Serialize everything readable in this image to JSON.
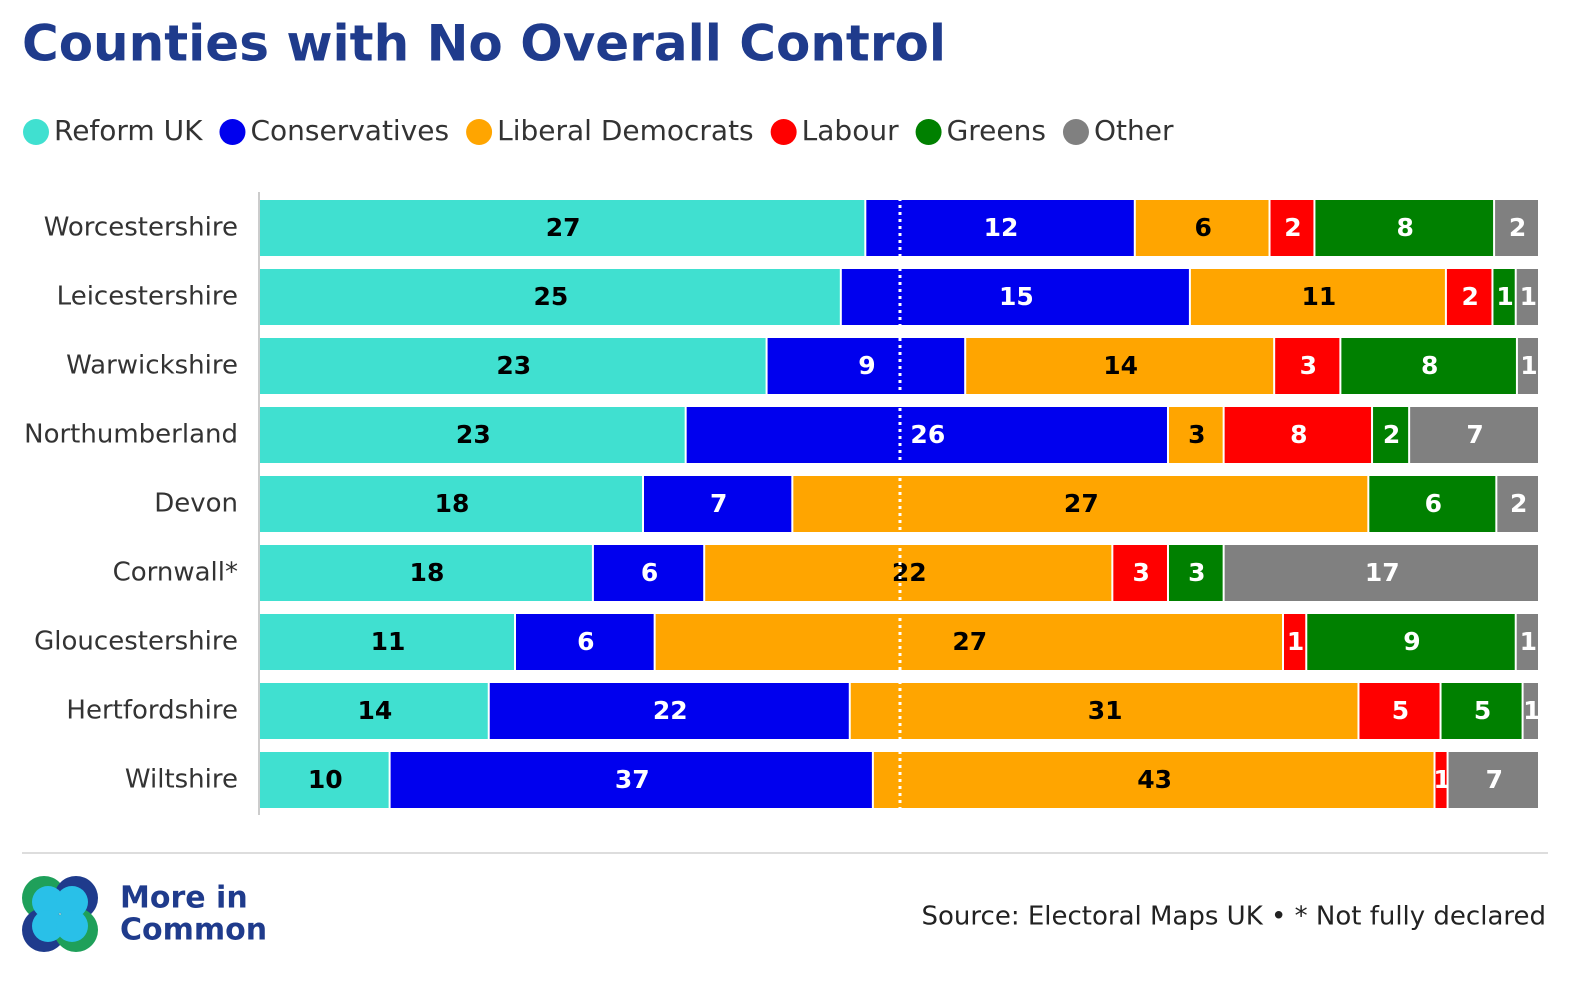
{
  "chart_data": {
    "type": "bar",
    "orientation": "horizontal",
    "stacked": "percent",
    "title": "Counties with No Overall Control",
    "categories": [
      "Worcestershire",
      "Leicestershire",
      "Warwickshire",
      "Northumberland",
      "Devon",
      "Cornwall*",
      "Gloucestershire",
      "Hertfordshire",
      "Wiltshire"
    ],
    "series": [
      {
        "name": "Reform UK",
        "color": "#40e0d0",
        "label_color": "#000000",
        "values": [
          27,
          25,
          23,
          23,
          18,
          18,
          11,
          14,
          10
        ]
      },
      {
        "name": "Conservatives",
        "color": "#0000ee",
        "label_color": "#ffffff",
        "values": [
          12,
          15,
          9,
          26,
          7,
          6,
          6,
          22,
          37
        ]
      },
      {
        "name": "Liberal Democrats",
        "color": "#ffa500",
        "label_color": "#000000",
        "values": [
          6,
          11,
          14,
          3,
          27,
          22,
          27,
          31,
          43
        ]
      },
      {
        "name": "Labour",
        "color": "#ff0000",
        "label_color": "#ffffff",
        "values": [
          2,
          2,
          3,
          8,
          null,
          3,
          1,
          5,
          1
        ]
      },
      {
        "name": "Greens",
        "color": "#008000",
        "label_color": "#ffffff",
        "values": [
          8,
          1,
          8,
          2,
          6,
          3,
          9,
          5,
          null
        ]
      },
      {
        "name": "Other",
        "color": "#808080",
        "label_color": "#ffffff",
        "values": [
          2,
          1,
          1,
          7,
          2,
          17,
          1,
          1,
          7
        ]
      }
    ],
    "legend": "top-left"
  },
  "footer": {
    "brand": [
      "More in",
      "Common"
    ],
    "source": "Source: Electoral Maps UK • * Not fully declared"
  }
}
